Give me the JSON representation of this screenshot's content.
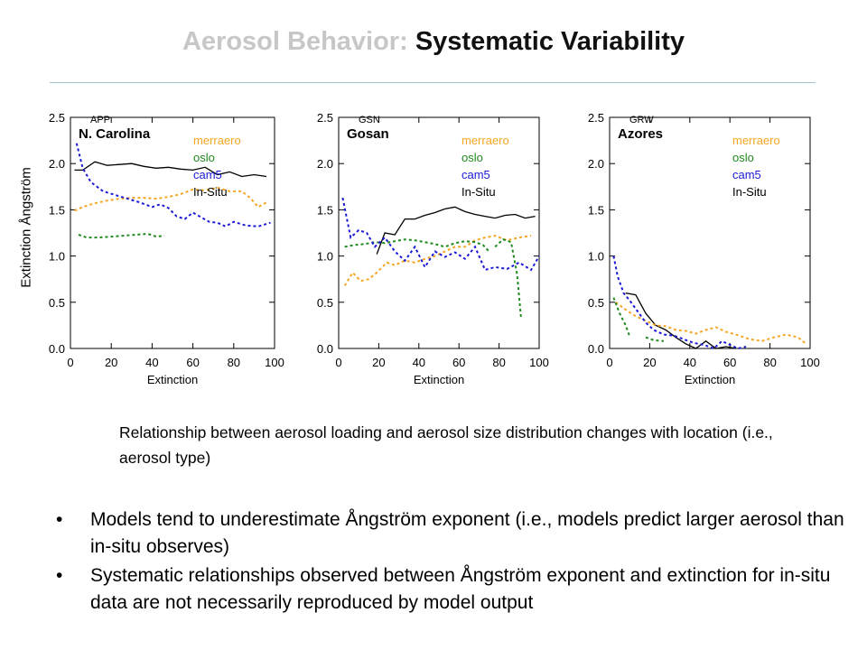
{
  "slide": {
    "title_prefix": "Aerosol Behavior: ",
    "title_main": "Systematic Variability",
    "y_axis_label": "Extinction Ångström",
    "caption": "Relationship between aerosol loading and aerosol size distribution changes with location (i.e., aerosol type)",
    "bullets": [
      "Models tend to underestimate Ångström exponent (i.e., models predict larger aerosol than in-situ observes)",
      "Systematic relationships observed between Ångström exponent and extinction for in-situ data are not necessarily reproduced by model output"
    ]
  },
  "colors": {
    "merraero": "#f5a623",
    "oslo": "#1f8a1f",
    "cam5": "#1a1ad6",
    "In-Situ": "#000000"
  },
  "chart_data": [
    {
      "type": "line",
      "station": "APP",
      "location": "N. Carolina",
      "xlabel": "Extinction",
      "xlim": [
        0,
        100
      ],
      "ylim": [
        0,
        2.5
      ],
      "xticks": [
        0,
        20,
        40,
        60,
        80,
        100
      ],
      "yticks": [
        0.0,
        0.5,
        1.0,
        1.5,
        2.0,
        2.5
      ],
      "legend": [
        "merraero",
        "oslo",
        "cam5",
        "In-Situ"
      ],
      "series": [
        {
          "name": "In-Situ",
          "style": "solid",
          "points": [
            [
              2,
              1.93
            ],
            [
              6,
              1.93
            ],
            [
              12,
              2.02
            ],
            [
              18,
              1.98
            ],
            [
              24,
              1.99
            ],
            [
              30,
              2.0
            ],
            [
              36,
              1.97
            ],
            [
              42,
              1.95
            ],
            [
              48,
              1.96
            ],
            [
              54,
              1.94
            ],
            [
              60,
              1.93
            ],
            [
              66,
              1.96
            ],
            [
              72,
              1.88
            ],
            [
              78,
              1.91
            ],
            [
              84,
              1.86
            ],
            [
              90,
              1.88
            ],
            [
              96,
              1.86
            ]
          ]
        },
        {
          "name": "merraero",
          "style": "dashed",
          "points": [
            [
              2,
              1.49
            ],
            [
              6,
              1.53
            ],
            [
              12,
              1.57
            ],
            [
              18,
              1.6
            ],
            [
              24,
              1.62
            ],
            [
              30,
              1.63
            ],
            [
              36,
              1.63
            ],
            [
              42,
              1.62
            ],
            [
              48,
              1.64
            ],
            [
              54,
              1.67
            ],
            [
              60,
              1.72
            ],
            [
              66,
              1.71
            ],
            [
              72,
              1.74
            ],
            [
              78,
              1.7
            ],
            [
              84,
              1.7
            ],
            [
              88,
              1.63
            ],
            [
              92,
              1.53
            ],
            [
              96,
              1.58
            ]
          ]
        },
        {
          "name": "oslo",
          "style": "dashed",
          "points": [
            [
              4,
              1.23
            ],
            [
              8,
              1.2
            ],
            [
              14,
              1.2
            ],
            [
              20,
              1.21
            ],
            [
              26,
              1.22
            ],
            [
              32,
              1.23
            ],
            [
              38,
              1.24
            ],
            [
              42,
              1.21
            ],
            [
              46,
              1.22
            ]
          ]
        },
        {
          "name": "cam5",
          "style": "dashed",
          "points": [
            [
              3,
              2.22
            ],
            [
              6,
              1.95
            ],
            [
              10,
              1.8
            ],
            [
              16,
              1.7
            ],
            [
              22,
              1.66
            ],
            [
              28,
              1.62
            ],
            [
              34,
              1.58
            ],
            [
              40,
              1.53
            ],
            [
              44,
              1.56
            ],
            [
              48,
              1.52
            ],
            [
              52,
              1.43
            ],
            [
              56,
              1.4
            ],
            [
              60,
              1.47
            ],
            [
              64,
              1.42
            ],
            [
              68,
              1.37
            ],
            [
              72,
              1.36
            ],
            [
              76,
              1.32
            ],
            [
              80,
              1.37
            ],
            [
              86,
              1.33
            ],
            [
              92,
              1.32
            ],
            [
              98,
              1.36
            ]
          ]
        }
      ]
    },
    {
      "type": "line",
      "station": "GSN",
      "location": "Gosan",
      "xlabel": "Extinction",
      "xlim": [
        0,
        100
      ],
      "ylim": [
        0,
        2.5
      ],
      "xticks": [
        0,
        20,
        40,
        60,
        80,
        100
      ],
      "yticks": [
        0.0,
        0.5,
        1.0,
        1.5,
        2.0,
        2.5
      ],
      "legend": [
        "merraero",
        "oslo",
        "cam5",
        "In-Situ"
      ],
      "series": [
        {
          "name": "In-Situ",
          "style": "solid",
          "points": [
            [
              19,
              1.02
            ],
            [
              23,
              1.25
            ],
            [
              28,
              1.23
            ],
            [
              33,
              1.4
            ],
            [
              38,
              1.4
            ],
            [
              43,
              1.44
            ],
            [
              48,
              1.47
            ],
            [
              53,
              1.51
            ],
            [
              58,
              1.53
            ],
            [
              63,
              1.48
            ],
            [
              68,
              1.45
            ],
            [
              73,
              1.43
            ],
            [
              78,
              1.41
            ],
            [
              83,
              1.44
            ],
            [
              88,
              1.45
            ],
            [
              93,
              1.41
            ],
            [
              98,
              1.43
            ]
          ]
        },
        {
          "name": "merraero",
          "style": "dashed",
          "points": [
            [
              3,
              0.68
            ],
            [
              7,
              0.82
            ],
            [
              11,
              0.73
            ],
            [
              15,
              0.75
            ],
            [
              19,
              0.82
            ],
            [
              24,
              0.93
            ],
            [
              28,
              0.9
            ],
            [
              33,
              0.95
            ],
            [
              38,
              0.93
            ],
            [
              43,
              0.97
            ],
            [
              48,
              1.0
            ],
            [
              53,
              1.05
            ],
            [
              58,
              1.1
            ],
            [
              63,
              1.1
            ],
            [
              68,
              1.17
            ],
            [
              73,
              1.2
            ],
            [
              78,
              1.22
            ],
            [
              84,
              1.17
            ],
            [
              90,
              1.2
            ],
            [
              96,
              1.22
            ]
          ]
        },
        {
          "name": "oslo",
          "style": "dashed",
          "points": [
            [
              3,
              1.1
            ],
            [
              8,
              1.12
            ],
            [
              13,
              1.13
            ],
            [
              18,
              1.15
            ],
            [
              23,
              1.14
            ],
            [
              28,
              1.16
            ],
            [
              33,
              1.18
            ],
            [
              38,
              1.17
            ],
            [
              43,
              1.15
            ],
            [
              48,
              1.13
            ],
            [
              53,
              1.1
            ],
            [
              58,
              1.14
            ],
            [
              63,
              1.16
            ],
            [
              68,
              1.15
            ],
            [
              72,
              1.12
            ],
            [
              75,
              1.05
            ],
            [
              null,
              null
            ],
            [
              78,
              1.1
            ],
            [
              82,
              1.18
            ],
            [
              86,
              1.15
            ],
            [
              89,
              0.8
            ],
            [
              91,
              0.32
            ]
          ]
        },
        {
          "name": "cam5",
          "style": "dashed",
          "points": [
            [
              2,
              1.63
            ],
            [
              6,
              1.2
            ],
            [
              10,
              1.28
            ],
            [
              14,
              1.25
            ],
            [
              18,
              1.1
            ],
            [
              23,
              1.2
            ],
            [
              28,
              1.05
            ],
            [
              33,
              0.95
            ],
            [
              38,
              1.1
            ],
            [
              43,
              0.88
            ],
            [
              48,
              1.05
            ],
            [
              53,
              0.99
            ],
            [
              58,
              1.04
            ],
            [
              63,
              0.97
            ],
            [
              68,
              1.1
            ],
            [
              73,
              0.85
            ],
            [
              78,
              0.88
            ],
            [
              84,
              0.86
            ],
            [
              90,
              0.93
            ],
            [
              96,
              0.85
            ],
            [
              100,
              1.0
            ]
          ]
        }
      ]
    },
    {
      "type": "line",
      "station": "GRW",
      "location": "Azores",
      "xlabel": "Extinction",
      "xlim": [
        0,
        100
      ],
      "ylim": [
        0,
        2.5
      ],
      "xticks": [
        0,
        20,
        40,
        60,
        80,
        100
      ],
      "yticks": [
        0.0,
        0.5,
        1.0,
        1.5,
        2.0,
        2.5
      ],
      "legend": [
        "merraero",
        "oslo",
        "cam5",
        "In-Situ"
      ],
      "series": [
        {
          "name": "In-Situ",
          "style": "solid",
          "points": [
            [
              8,
              0.6
            ],
            [
              13,
              0.58
            ],
            [
              18,
              0.38
            ],
            [
              23,
              0.25
            ],
            [
              28,
              0.2
            ],
            [
              33,
              0.12
            ],
            [
              38,
              0.05
            ],
            [
              43,
              0.0
            ],
            [
              48,
              0.08
            ],
            [
              53,
              0.0
            ],
            [
              58,
              0.02
            ],
            [
              63,
              0.0
            ]
          ]
        },
        {
          "name": "merraero",
          "style": "dashed",
          "points": [
            [
              3,
              0.5
            ],
            [
              8,
              0.42
            ],
            [
              13,
              0.35
            ],
            [
              18,
              0.3
            ],
            [
              23,
              0.25
            ],
            [
              28,
              0.24
            ],
            [
              33,
              0.2
            ],
            [
              38,
              0.19
            ],
            [
              43,
              0.16
            ],
            [
              48,
              0.2
            ],
            [
              53,
              0.23
            ],
            [
              58,
              0.18
            ],
            [
              63,
              0.15
            ],
            [
              70,
              0.1
            ],
            [
              76,
              0.08
            ],
            [
              82,
              0.12
            ],
            [
              88,
              0.15
            ],
            [
              94,
              0.12
            ],
            [
              98,
              0.05
            ]
          ]
        },
        {
          "name": "oslo",
          "style": "dashed",
          "points": [
            [
              2,
              0.55
            ],
            [
              5,
              0.38
            ],
            [
              8,
              0.25
            ],
            [
              10,
              0.13
            ],
            [
              null,
              null
            ],
            [
              18,
              0.12
            ],
            [
              22,
              0.09
            ],
            [
              27,
              0.08
            ]
          ]
        },
        {
          "name": "cam5",
          "style": "dashed",
          "points": [
            [
              2,
              1.0
            ],
            [
              4,
              0.78
            ],
            [
              7,
              0.6
            ],
            [
              10,
              0.52
            ],
            [
              14,
              0.4
            ],
            [
              18,
              0.28
            ],
            [
              22,
              0.2
            ],
            [
              27,
              0.15
            ],
            [
              32,
              0.14
            ],
            [
              37,
              0.1
            ],
            [
              42,
              0.06
            ],
            [
              47,
              0.04
            ],
            [
              52,
              0.0
            ],
            [
              56,
              0.08
            ],
            [
              60,
              0.04
            ],
            [
              64,
              0.0
            ],
            [
              68,
              0.02
            ]
          ]
        }
      ]
    }
  ]
}
